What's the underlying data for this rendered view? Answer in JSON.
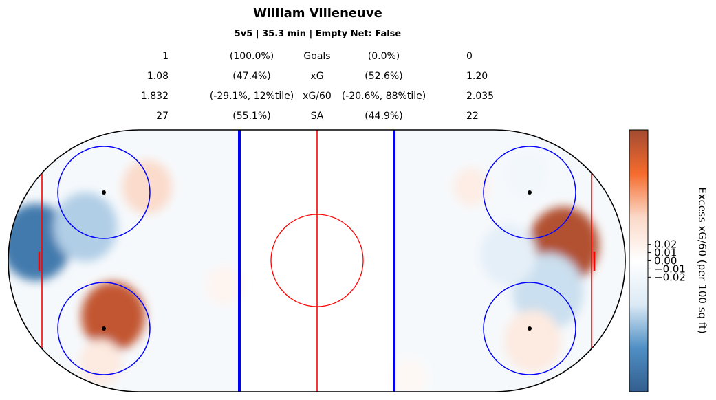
{
  "title": "William Villeneuve",
  "subtitle": "5v5 | 35.3 min | Empty Net: False",
  "stats": [
    {
      "left_value": "1",
      "left_pct": "(100.0%)",
      "label": "Goals",
      "right_pct": "(0.0%)",
      "right_value": "0"
    },
    {
      "left_value": "1.08",
      "left_pct": "(47.4%)",
      "label": "xG",
      "right_pct": "(52.6%)",
      "right_value": "1.20"
    },
    {
      "left_value": "1.832",
      "left_pct": "(-29.1%, 12%tile)",
      "label": "xG/60",
      "right_pct": "(-20.6%, 88%tile)",
      "right_value": "2.035"
    },
    {
      "left_value": "27",
      "left_pct": "(55.1%)",
      "label": "SA",
      "right_pct": "(44.9%)",
      "right_value": "22"
    }
  ],
  "colorbar": {
    "label": "Excess xG/60 (per 100 sq ft)",
    "ticks": [
      "0.02",
      "0.01",
      "0.00",
      "−0.01",
      "−0.02"
    ],
    "tick_values": [
      0.02,
      0.01,
      0.0,
      -0.01,
      -0.02
    ],
    "range": [
      -0.16,
      0.16
    ],
    "colors": [
      "#335e8f",
      "#4f8fc4",
      "#dceaf5",
      "#ffffff",
      "#fbd9c8",
      "#f56b2d",
      "#a34b32"
    ]
  },
  "chart_data": {
    "type": "heatmap",
    "title": "William Villeneuve",
    "subtitle": "5v5 | 35.3 min | Empty Net: False",
    "colorbar_label": "Excess xG/60 (per 100 sq ft)",
    "colorbar_ticks": [
      0.02,
      0.01,
      0.0,
      -0.01,
      -0.02
    ],
    "value_range": [
      -0.16,
      0.16
    ],
    "rink_x_range": [
      -100,
      100
    ],
    "rink_y_range": [
      -42.5,
      42.5
    ],
    "hotspots": [
      {
        "x": -91,
        "y": 6,
        "r": 10,
        "value": -0.13
      },
      {
        "x": -75,
        "y": 11,
        "r": 9,
        "value": -0.07
      },
      {
        "x": -66,
        "y": -18,
        "r": 9,
        "value": 0.14
      },
      {
        "x": -55,
        "y": 24,
        "r": 7,
        "value": 0.05
      },
      {
        "x": -70,
        "y": -33,
        "r": 6,
        "value": 0.03
      },
      {
        "x": -30,
        "y": -8,
        "r": 5,
        "value": 0.015
      },
      {
        "x": 80,
        "y": 5,
        "r": 10,
        "value": 0.15
      },
      {
        "x": 75,
        "y": -10,
        "r": 10,
        "value": -0.06
      },
      {
        "x": 62,
        "y": 2,
        "r": 8,
        "value": -0.04
      },
      {
        "x": 70,
        "y": -26,
        "r": 8,
        "value": 0.03
      },
      {
        "x": 50,
        "y": 24,
        "r": 5,
        "value": 0.025
      },
      {
        "x": 68,
        "y": 28,
        "r": 6,
        "value": -0.02
      },
      {
        "x": 30,
        "y": -38,
        "r": 5,
        "value": 0.01
      }
    ]
  }
}
